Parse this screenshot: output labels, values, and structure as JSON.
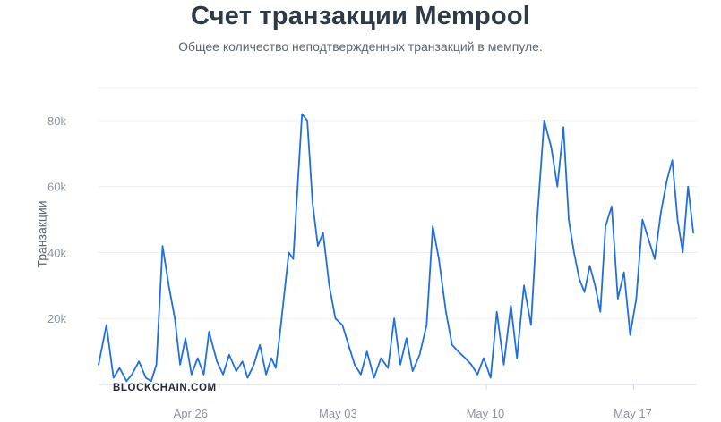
{
  "header": {
    "title": "Счет транзакции Mempool",
    "subtitle": "Общее количество неподтвержденных транзакций в мемпуле."
  },
  "watermark": "BLOCKCHAIN.COM",
  "colors": {
    "line": "#1f6fe0",
    "grid": "#eceff3",
    "axis": "#cfd5dc"
  },
  "chart_data": {
    "type": "line",
    "title": "Счет транзакции Mempool",
    "subtitle": "Общее количество неподтвержденных транзакций в мемпуле.",
    "xlabel": "",
    "ylabel": "Транзакции",
    "ylim": [
      0,
      90000
    ],
    "xlim": [
      "2023-04-21T14:00",
      "2023-05-20T00:00"
    ],
    "yticks": [
      20000,
      40000,
      60000,
      80000
    ],
    "ytick_labels": [
      "20k",
      "40k",
      "60k",
      "80k"
    ],
    "xticks": [
      "2023-04-26",
      "2023-05-03",
      "2023-05-10",
      "2023-05-17"
    ],
    "xtick_labels": [
      "Apr 26",
      "May 03",
      "May 10",
      "May 17"
    ],
    "grid": true,
    "legend": "none",
    "series": [
      {
        "x": [
          "2023-04-21T14:00",
          "2023-04-21T23:00",
          "2023-04-22T07:00",
          "2023-04-22T14:00",
          "2023-04-22T22:00",
          "2023-04-23T04:00",
          "2023-04-23T12:00",
          "2023-04-23T20:00",
          "2023-04-24T02:00",
          "2023-04-24T08:00",
          "2023-04-24T15:00",
          "2023-04-24T22:00",
          "2023-04-25T05:00",
          "2023-04-25T11:00",
          "2023-04-25T17:00",
          "2023-04-26T00:00",
          "2023-04-26T07:00",
          "2023-04-26T14:00",
          "2023-04-26T20:00",
          "2023-04-27T05:00",
          "2023-04-27T12:00",
          "2023-04-27T19:00",
          "2023-04-28T03:00",
          "2023-04-28T10:00",
          "2023-04-28T16:00",
          "2023-04-28T23:00",
          "2023-04-29T06:00",
          "2023-04-29T13:00",
          "2023-04-29T19:00",
          "2023-04-30T00:00",
          "2023-04-30T05:00",
          "2023-04-30T10:00",
          "2023-04-30T15:00",
          "2023-04-30T20:00",
          "2023-05-01T01:00",
          "2023-05-01T06:00",
          "2023-05-01T12:00",
          "2023-05-01T18:00",
          "2023-05-02T00:00",
          "2023-05-02T06:00",
          "2023-05-02T13:00",
          "2023-05-02T20:00",
          "2023-05-03T04:00",
          "2023-05-03T11:00",
          "2023-05-03T18:00",
          "2023-05-04T01:00",
          "2023-05-04T08:00",
          "2023-05-04T16:00",
          "2023-05-05T00:00",
          "2023-05-05T08:00",
          "2023-05-05T15:00",
          "2023-05-05T22:00",
          "2023-05-06T05:00",
          "2023-05-06T12:00",
          "2023-05-06T20:00",
          "2023-05-07T04:00",
          "2023-05-07T11:00",
          "2023-05-07T18:00",
          "2023-05-08T02:00",
          "2023-05-08T09:00",
          "2023-05-08T16:00",
          "2023-05-09T00:00",
          "2023-05-09T07:00",
          "2023-05-09T14:00",
          "2023-05-09T21:00",
          "2023-05-10T05:00",
          "2023-05-10T12:00",
          "2023-05-10T20:00",
          "2023-05-11T04:00",
          "2023-05-11T11:00",
          "2023-05-11T19:00",
          "2023-05-12T03:00",
          "2023-05-12T10:00",
          "2023-05-12T18:00",
          "2023-05-13T02:00",
          "2023-05-13T09:00",
          "2023-05-13T16:00",
          "2023-05-13T22:00",
          "2023-05-14T04:00",
          "2023-05-14T10:00",
          "2023-05-14T16:00",
          "2023-05-14T22:00",
          "2023-05-15T04:00",
          "2023-05-15T10:00",
          "2023-05-15T16:00",
          "2023-05-15T23:00",
          "2023-05-16T06:00",
          "2023-05-16T13:00",
          "2023-05-16T20:00",
          "2023-05-17T03:00",
          "2023-05-17T10:00",
          "2023-05-17T17:00",
          "2023-05-18T00:00",
          "2023-05-18T07:00",
          "2023-05-18T14:00",
          "2023-05-18T20:00",
          "2023-05-19T02:00",
          "2023-05-19T08:00",
          "2023-05-19T14:00",
          "2023-05-19T20:00"
        ],
        "y": [
          6000,
          18000,
          2000,
          5000,
          1000,
          3000,
          7000,
          2000,
          1000,
          6000,
          42000,
          30000,
          20000,
          6000,
          14000,
          3000,
          8000,
          3000,
          16000,
          7000,
          3000,
          9000,
          4000,
          7000,
          2000,
          6000,
          12000,
          3000,
          8000,
          5000,
          16000,
          28000,
          40000,
          38000,
          60000,
          82000,
          80000,
          55000,
          42000,
          46000,
          30000,
          20000,
          18000,
          12000,
          6000,
          3000,
          10000,
          2000,
          8000,
          5000,
          20000,
          6000,
          14000,
          4000,
          9000,
          18000,
          48000,
          38000,
          22000,
          12000,
          10000,
          8000,
          6000,
          3000,
          8000,
          2000,
          22000,
          6000,
          24000,
          8000,
          30000,
          18000,
          50000,
          80000,
          72000,
          60000,
          78000,
          50000,
          40000,
          32000,
          28000,
          36000,
          30000,
          22000,
          48000,
          54000,
          26000,
          34000,
          15000,
          26000,
          50000,
          44000,
          38000,
          52000,
          62000,
          68000,
          50000,
          40000,
          60000,
          46000
        ]
      }
    ]
  }
}
